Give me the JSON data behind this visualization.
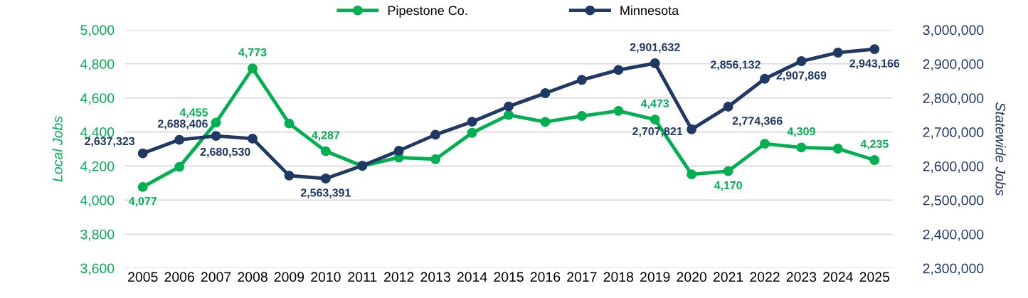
{
  "chart_data": {
    "type": "line",
    "categories": [
      "2005",
      "2006",
      "2007",
      "2008",
      "2009",
      "2010",
      "2011",
      "2012",
      "2013",
      "2014",
      "2015",
      "2016",
      "2017",
      "2018",
      "2019",
      "2020",
      "2021",
      "2022",
      "2023",
      "2024",
      "2025"
    ],
    "ylabel": "Local Jobs",
    "y2label": "Statewide Jobs",
    "ylim": [
      3600,
      5000
    ],
    "yticks": [
      {
        "value": 3600,
        "label": "3,600"
      },
      {
        "value": 3800,
        "label": "3,800"
      },
      {
        "value": 4000,
        "label": "4,000"
      },
      {
        "value": 4200,
        "label": "4,200"
      },
      {
        "value": 4400,
        "label": "4,400"
      },
      {
        "value": 4600,
        "label": "4,600"
      },
      {
        "value": 4800,
        "label": "4,800"
      },
      {
        "value": 5000,
        "label": "5,000"
      }
    ],
    "y2lim": [
      2300000,
      3000000
    ],
    "y2ticks": [
      {
        "value": 2300000,
        "label": "2,300,000"
      },
      {
        "value": 2400000,
        "label": "2,400,000"
      },
      {
        "value": 2500000,
        "label": "2,500,000"
      },
      {
        "value": 2600000,
        "label": "2,600,000"
      },
      {
        "value": 2700000,
        "label": "2,700,000"
      },
      {
        "value": 2800000,
        "label": "2,800,000"
      },
      {
        "value": 2900000,
        "label": "2,900,000"
      },
      {
        "value": 3000000,
        "label": "3,000,000"
      }
    ],
    "grid": "y",
    "legend": "top",
    "marker": "circle",
    "line_style": "solid",
    "series": [
      {
        "name": "Pipestone Co.",
        "color": "#00b050",
        "values": [
          4077,
          4195,
          4455,
          4773,
          4450,
          4287,
          4200,
          4250,
          4240,
          4395,
          4500,
          4459,
          4494,
          4524,
          4473,
          4151,
          4170,
          4331,
          4309,
          4302,
          4235
        ],
        "value_labels": [
          "4,077",
          null,
          "4,455",
          "4,773",
          null,
          "4,287",
          null,
          null,
          null,
          null,
          null,
          null,
          null,
          null,
          "4,473",
          null,
          "4,170",
          null,
          "4,309",
          null,
          "4,235"
        ]
      },
      {
        "name": "Minnesota",
        "color": "#1f3864",
        "axis": "y2",
        "values": [
          2637323,
          2677000,
          2688406,
          2680530,
          2572000,
          2563391,
          2601000,
          2645000,
          2692000,
          2730000,
          2775000,
          2814000,
          2853000,
          2882000,
          2901632,
          2707821,
          2774366,
          2856132,
          2907869,
          2933000,
          2943166
        ],
        "value_labels": [
          "2,637,323",
          null,
          "2,688,406",
          "2,680,530",
          null,
          "2,563,391",
          null,
          null,
          null,
          null,
          null,
          null,
          null,
          null,
          "2,901,632",
          "2,707,821",
          "2,774,366",
          "2,856,132",
          "2,907,869",
          null,
          "2,943,166"
        ]
      }
    ]
  }
}
